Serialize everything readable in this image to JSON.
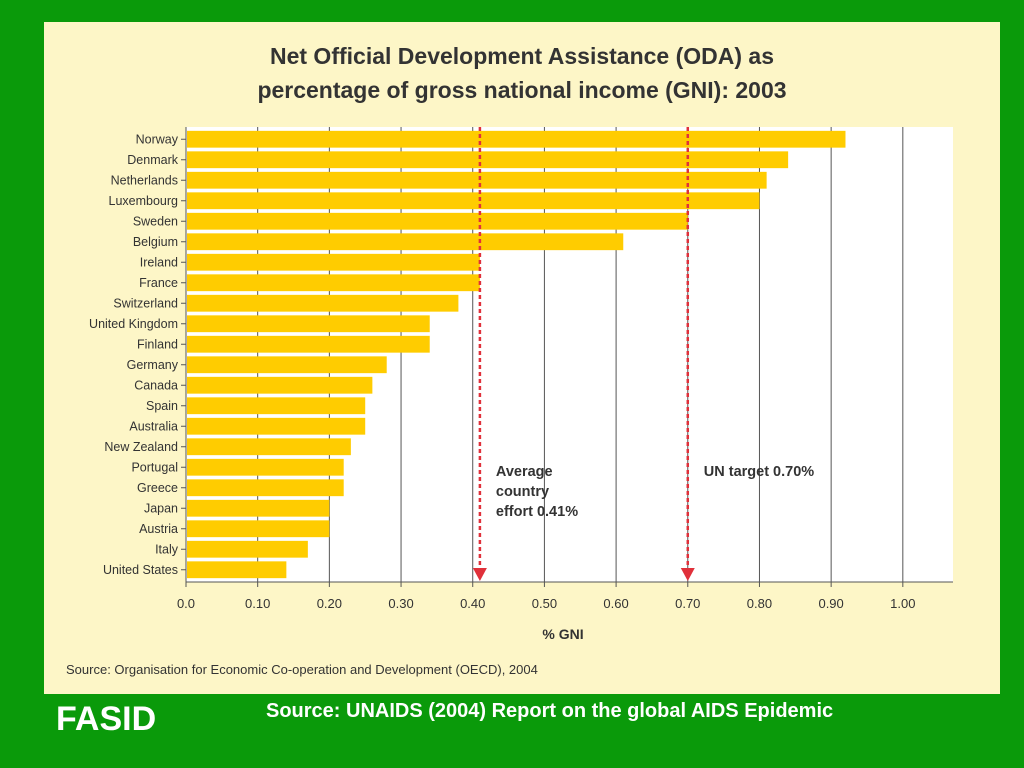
{
  "chart_data": {
    "type": "bar",
    "orientation": "horizontal",
    "title_line1": "Net Official Development Assistance (ODA) as",
    "title_line2": "percentage of gross national income (GNI): 2003",
    "xlabel": "% GNI",
    "xlim": [
      0,
      1.07
    ],
    "xticks": [
      "0.0",
      "0.10",
      "0.20",
      "0.30",
      "0.40",
      "0.50",
      "0.60",
      "0.70",
      "0.80",
      "0.90",
      "1.00"
    ],
    "categories": [
      "Norway",
      "Denmark",
      "Netherlands",
      "Luxembourg",
      "Sweden",
      "Belgium",
      "Ireland",
      "France",
      "Switzerland",
      "United Kingdom",
      "Finland",
      "Germany",
      "Canada",
      "Spain",
      "Australia",
      "New Zealand",
      "Portugal",
      "Greece",
      "Japan",
      "Austria",
      "Italy",
      "United States"
    ],
    "values": [
      0.92,
      0.84,
      0.81,
      0.8,
      0.7,
      0.61,
      0.41,
      0.41,
      0.38,
      0.34,
      0.34,
      0.28,
      0.26,
      0.25,
      0.25,
      0.23,
      0.22,
      0.22,
      0.2,
      0.2,
      0.17,
      0.14
    ],
    "bar_color": "#ffcc00",
    "reference_lines": [
      {
        "value": 0.41,
        "label_lines": [
          "Average",
          "country",
          "effort 0.41%"
        ],
        "color": "#e0303a"
      },
      {
        "value": 0.7,
        "label_lines": [
          "UN target 0.70%"
        ],
        "color": "#e0303a"
      }
    ],
    "source": "Source: Organisation for Economic Co-operation and Development (OECD), 2004"
  },
  "footer": {
    "org": "FASID",
    "source": "Source: UNAIDS (2004)  Report on the global AIDS Epidemic"
  }
}
